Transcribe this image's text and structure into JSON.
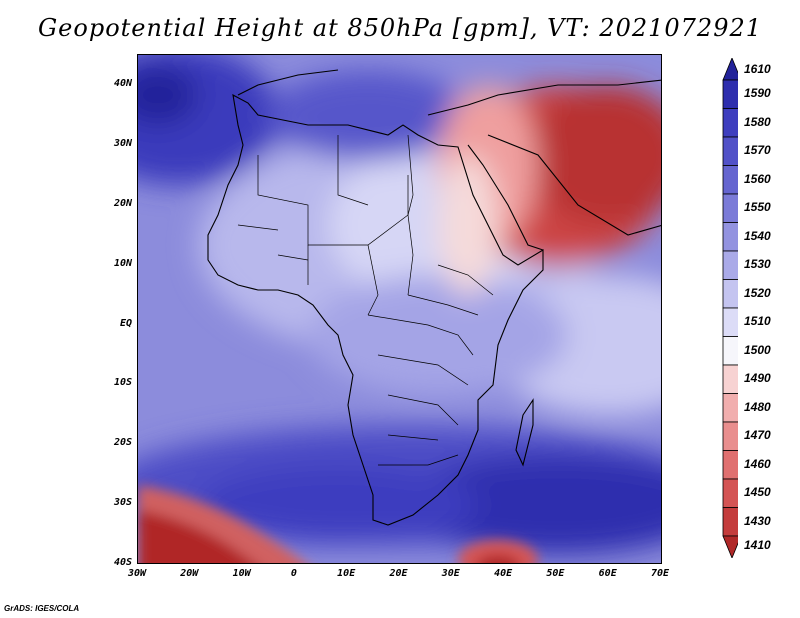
{
  "title": "Geopotential Height at 850hPa [gpm], VT: 2021072921",
  "credit": "GrADS: IGES/COLA",
  "lat_labels": [
    "40N",
    "30N",
    "20N",
    "10N",
    "EQ",
    "10S",
    "20S",
    "30S",
    "40S"
  ],
  "lon_labels": [
    "30W",
    "20W",
    "10W",
    "0",
    "10E",
    "20E",
    "30E",
    "40E",
    "50E",
    "60E",
    "70E"
  ],
  "colorbar": {
    "levels": [
      "1610",
      "1590",
      "1580",
      "1570",
      "1560",
      "1550",
      "1540",
      "1530",
      "1520",
      "1510",
      "1500",
      "1490",
      "1480",
      "1470",
      "1460",
      "1450",
      "1430",
      "1410"
    ],
    "colors": [
      "#22229a",
      "#2e2eae",
      "#3e3ebf",
      "#5151c8",
      "#6565d0",
      "#7b7bd8",
      "#9393e0",
      "#aaaae8",
      "#c4c4f0",
      "#dcdcf7",
      "#f6f6fb",
      "#f7d2d2",
      "#f1aeae",
      "#e98e8e",
      "#e07070",
      "#d45454",
      "#c43c3c",
      "#b02828"
    ]
  },
  "legend_colors": {
    "high": "#22229a",
    "low": "#b02828",
    "mid": "#f6f6fb"
  }
}
